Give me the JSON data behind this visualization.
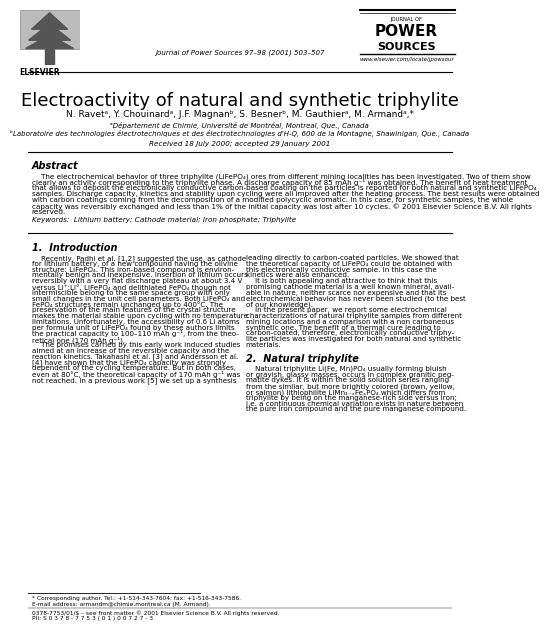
{
  "title": "Electroactivity of natural and synthetic triphylite",
  "authors": "N. Ravetᵃ, Y. Chouinardᵃ, J.F. Magnanᵇ, S. Besnerᵇ, M. Gauthierᵃ, M. Armandᵃ,*",
  "affil1": "ᵃDépartement de Chimie, Université de Montréal, Montreal, Que., Canada",
  "affil2": "ᵇLaboratoire des technologies électrotechniques et des électrotechnologies d'H-Q, 600 de la Montagne, Shawinigan, Que., Canada",
  "received": "Received 18 July 2000; accepted 29 January 2001",
  "journal_header": "Journal of Power Sources 97–98 (2001) 503–507",
  "journal_url": "www.elsevier.com/locate/jpowsour",
  "abstract_title": "Abstract",
  "keywords": "Keywords:  Lithium battery; Cathode material; Iron phosphate; Triphylite",
  "section1_title": "1.  Introduction",
  "section2_title": "2.  Natural triphylite",
  "abstract_lines": [
    "    The electrochemical behavior of three triphylite (LiFePO₄) ores from different mining localities has been investigated. Two of them show",
    "clearly an activity corresponding to the triphylite phase. A discharge capacity of 85 mAh g⁻¹ was obtained. The benefit of heat treatment",
    "that allows to deposit the electronically conductive carbon-based coating on the particles is reported for both natural and synthetic LiFePO₄",
    "samples. Discharge capacity, kinetics and stability upon cycling were all improved after the heating process. The best results were obtained",
    "with carbon coatings coming from the decomposition of a modified polycyclic aromatic. In this case, for synthetic samples, the whole",
    "capacity was reversibly exchanged and less than 1% of the initial capacity was lost after 10 cycles. © 2001 Elsevier Science B.V. All rights",
    "reserved."
  ],
  "col1_lines": [
    "    Recently, Padhi et al. [1,2] suggested the use, as cathode",
    "for lithium battery, of a new compound having the olivine",
    "structure: LiFePO₄. This iron-based compound is environ-",
    "mentally benign and inexpensive. Insertion of lithium occurs",
    "reversibly with a very flat discharge plateau at about 3.4 V",
    "versus Li⁺:Li°. LiFePO₄ and delithiated FePO₄ though not",
    "intermiscible belong to the same space group with only",
    "small changes in the unit cell parameters. Both LiFePO₄ and",
    "FePO₄ structures remain unchanged up to 400°C. The",
    "preservation of the main features of the crystal structure",
    "makes the material stable upon cycling with no temperature",
    "limitations. Unfortunately, the accessibility of 0.6 Li atoms",
    "per formula unit of LiFePO₄ found by these authors limits",
    "the practical capacity to 100–110 mAh g⁻¹, from the theo-",
    "retical one (170 mAh g⁻¹).",
    "    The promises carried by this early work induced studies",
    "aimed at an increase of the reversible capacity and the",
    "reaction kinetics. Takahashi et al. [3] and Andersson et al.",
    "[4] have shown that the LiFePO₄ capacity was strongly",
    "dependent of the cycling temperature. But in both cases,",
    "even at 80°C, the theoretical capacity of 170 mAh g⁻¹ was",
    "not reached. In a previous work [5] we set up a synthesis"
  ],
  "col2_intro_lines": [
    "leading directly to carbon-coated particles. We showed that",
    "the theoretical capacity of LiFePO₄ could be obtained with",
    "this electronically conductive sample. In this case the",
    "kinetics were also enhanced.",
    "    It is both appealing and attractive to think that this",
    "promising cathode material is a well known mineral, avail-",
    "able in nature, neither scarce nor expensive and that its",
    "electrochemical behavior has never been studied (to the best",
    "of our knowledge).",
    "    In the present paper, we report some electrochemical",
    "characterizations of natural triphylite samples from different",
    "mining locations and a comparison with a non carboneous",
    "synthetic one. The benefit of a thermal cure leading to",
    "carbon-coated, therefore, electronically conductive triphy-",
    "lite particles was investigated for both natural and synthetic",
    "materials."
  ],
  "col2_sec2_lines": [
    "    Natural triphylite Li(Fe, Mn)PO₄ usually forming bluish",
    "or grayish, glassy masses, occurs in complex granitic peg-",
    "matite dykes. It is within the solid solution series ranging",
    "from the similar, but more brightly colored (brown, yellow,",
    "or salmon) lithiophilite LiMn₁₋ₓFeₓPO₄ which differs from",
    "triphylite by being on the manganese-rich side versus iron;",
    "i.e. a continuous chemical variation exists in nature between",
    "the pure iron compound and the pure manganese compound."
  ],
  "footnote1": "* Corresponding author. Tel.: +1-514-343-7604; fax: +1-516-343-7586.",
  "footnote2": "E-mail address: armandm@chimie.montreal.ca (M. Armand).",
  "footnote3": "0378-7753/01/$ – see front matter © 2001 Elsevier Science B.V. All rights reserved.",
  "footnote4": "PII: S 0 3 7 8 - 7 7 5 3 ( 0 1 ) 0 0 7 2 7 - 3",
  "bg_color": "#ffffff"
}
